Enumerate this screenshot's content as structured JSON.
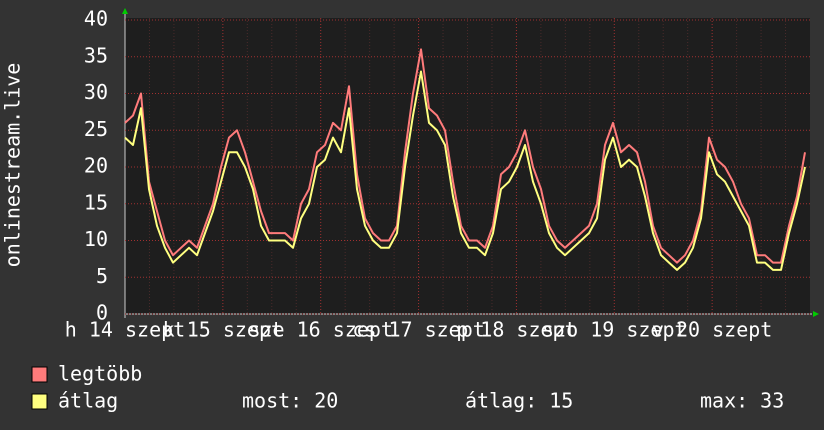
{
  "chart_data": {
    "type": "line",
    "y_label": "onlinestream.live",
    "ylim": [
      0,
      40
    ],
    "yticks": [
      0,
      5,
      10,
      15,
      20,
      25,
      30,
      35,
      40
    ],
    "grid": true,
    "x_tick_labels": [
      "h 14 szept",
      "k 15 szept",
      "sze 16 szept",
      "cs 17 szept",
      "p 18 szept",
      "szo 19 szept",
      "v 20 szept"
    ],
    "series": [
      {
        "name": "legtöbb",
        "color": "#ff7b7b",
        "values": [
          26,
          27,
          30,
          18,
          14,
          10,
          8,
          9,
          10,
          9,
          12,
          15,
          20,
          24,
          25,
          22,
          18,
          14,
          11,
          11,
          11,
          10,
          15,
          17,
          22,
          23,
          26,
          25,
          31,
          19,
          13,
          11,
          10,
          10,
          12,
          22,
          30,
          36,
          28,
          27,
          25,
          18,
          12,
          10,
          10,
          9,
          12,
          19,
          20,
          22,
          25,
          20,
          17,
          12,
          10,
          9,
          10,
          11,
          12,
          15,
          23,
          26,
          22,
          23,
          22,
          18,
          12,
          9,
          8,
          7,
          8,
          10,
          14,
          24,
          21,
          20,
          18,
          15,
          13,
          8,
          8,
          7,
          7,
          12,
          16,
          22
        ]
      },
      {
        "name": "átlag",
        "color": "#ffff80",
        "values": [
          24,
          23,
          28,
          17,
          12,
          9,
          7,
          8,
          9,
          8,
          11,
          14,
          18,
          22,
          22,
          20,
          17,
          12,
          10,
          10,
          10,
          9,
          13,
          15,
          20,
          21,
          24,
          22,
          28,
          17,
          12,
          10,
          9,
          9,
          11,
          20,
          27,
          33,
          26,
          25,
          23,
          16,
          11,
          9,
          9,
          8,
          11,
          17,
          18,
          20,
          23,
          18,
          15,
          11,
          9,
          8,
          9,
          10,
          11,
          13,
          21,
          24,
          20,
          21,
          20,
          16,
          11,
          8,
          7,
          6,
          7,
          9,
          13,
          22,
          19,
          18,
          16,
          14,
          12,
          7,
          7,
          6,
          6,
          11,
          15,
          20
        ]
      }
    ],
    "stats": [
      {
        "label": "most:",
        "value": 20
      },
      {
        "label": "átlag:",
        "value": 15
      },
      {
        "label": "max:",
        "value": 33
      }
    ]
  }
}
